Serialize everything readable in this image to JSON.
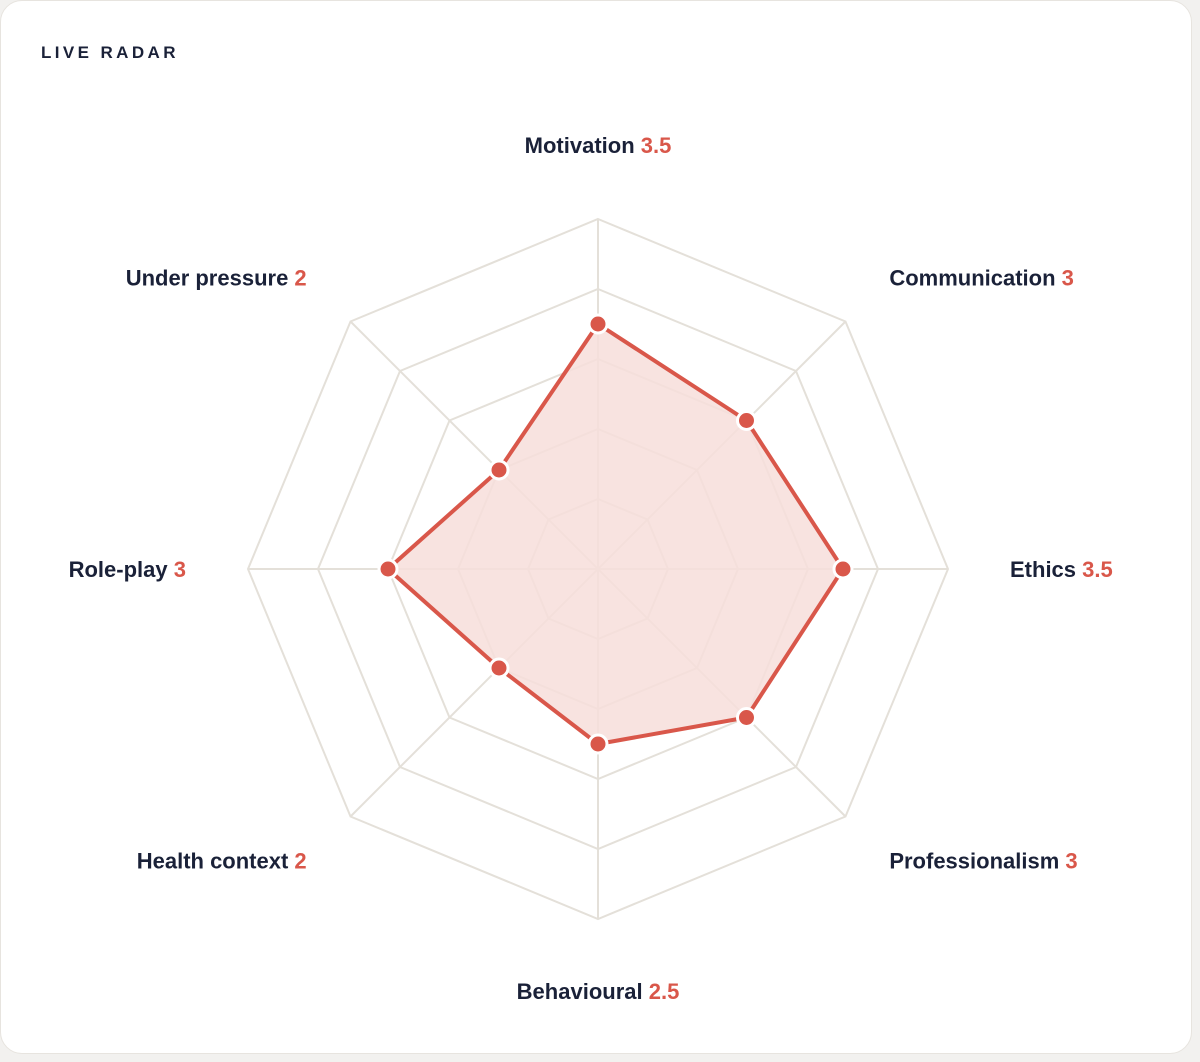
{
  "card": {
    "title": "LIVE RADAR"
  },
  "colors": {
    "grid": "#e4e0d9",
    "series_stroke": "#d9574a",
    "series_fill": "#f7dedb",
    "label_text": "#1a2138",
    "value_text": "#d9574a",
    "point_outline": "#ffffff"
  },
  "chart_data": {
    "type": "radar",
    "categories": [
      "Motivation",
      "Communication",
      "Ethics",
      "Professionalism",
      "Behavioural",
      "Health context",
      "Role-play",
      "Under pressure"
    ],
    "series": [
      {
        "values": [
          3.5,
          3,
          3.5,
          3,
          2.5,
          2,
          3,
          2
        ]
      }
    ],
    "value_labels": [
      "3.5",
      "3",
      "3.5",
      "3",
      "2.5",
      "2",
      "3",
      "2"
    ],
    "range": [
      0,
      5
    ],
    "grid_levels": 5,
    "grid": true
  }
}
